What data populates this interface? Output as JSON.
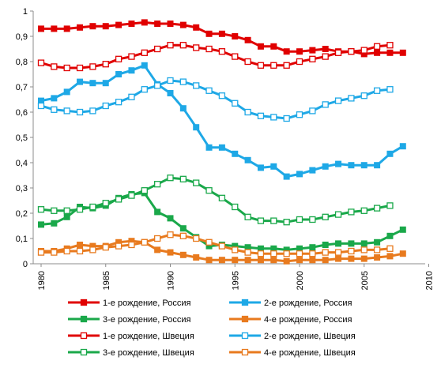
{
  "chart_data": {
    "type": "line",
    "title": "",
    "xlabel": "",
    "ylabel": "",
    "xlim": [
      1980,
      2010
    ],
    "ylim": [
      0,
      1
    ],
    "x_ticks": [
      1980,
      1985,
      1990,
      1995,
      2000,
      2005,
      2010
    ],
    "y_ticks": [
      "0",
      "0,1",
      "0,2",
      "0,3",
      "0,4",
      "0,5",
      "0,6",
      "0,7",
      "0,8",
      "0,9",
      "1"
    ],
    "grid": false,
    "legend_position": "bottom",
    "series": [
      {
        "name": "1-е рождение, Россия",
        "color": "#e00000",
        "marker": "filled",
        "x": [
          1980,
          1981,
          1982,
          1983,
          1984,
          1985,
          1986,
          1987,
          1988,
          1989,
          1990,
          1991,
          1992,
          1993,
          1994,
          1995,
          1996,
          1997,
          1998,
          1999,
          2000,
          2001,
          2002,
          2003,
          2004,
          2005,
          2006,
          2007,
          2008
        ],
        "y": [
          0.93,
          0.93,
          0.93,
          0.935,
          0.94,
          0.94,
          0.945,
          0.95,
          0.955,
          0.95,
          0.95,
          0.945,
          0.935,
          0.91,
          0.91,
          0.9,
          0.885,
          0.86,
          0.86,
          0.84,
          0.84,
          0.845,
          0.85,
          0.84,
          0.84,
          0.83,
          0.835,
          0.835,
          0.835
        ]
      },
      {
        "name": "2-е рождение, Россия",
        "color": "#1ea8e6",
        "marker": "filled",
        "x": [
          1980,
          1981,
          1982,
          1983,
          1984,
          1985,
          1986,
          1987,
          1988,
          1989,
          1990,
          1991,
          1992,
          1993,
          1994,
          1995,
          1996,
          1997,
          1998,
          1999,
          2000,
          2001,
          2002,
          2003,
          2004,
          2005,
          2006,
          2007,
          2008
        ],
        "y": [
          0.645,
          0.655,
          0.68,
          0.72,
          0.715,
          0.715,
          0.75,
          0.765,
          0.785,
          0.71,
          0.675,
          0.615,
          0.54,
          0.46,
          0.46,
          0.435,
          0.41,
          0.38,
          0.385,
          0.345,
          0.355,
          0.37,
          0.385,
          0.395,
          0.39,
          0.39,
          0.39,
          0.435,
          0.465
        ]
      },
      {
        "name": "3-е рождение, Россия",
        "color": "#1aa84a",
        "marker": "filled",
        "x": [
          1980,
          1981,
          1982,
          1983,
          1984,
          1985,
          1986,
          1987,
          1988,
          1989,
          1990,
          1991,
          1992,
          1993,
          1994,
          1995,
          1996,
          1997,
          1998,
          1999,
          2000,
          2001,
          2002,
          2003,
          2004,
          2005,
          2006,
          2007,
          2008
        ],
        "y": [
          0.155,
          0.16,
          0.185,
          0.225,
          0.22,
          0.23,
          0.26,
          0.275,
          0.28,
          0.205,
          0.18,
          0.14,
          0.105,
          0.07,
          0.075,
          0.07,
          0.065,
          0.06,
          0.06,
          0.055,
          0.06,
          0.065,
          0.075,
          0.08,
          0.08,
          0.08,
          0.085,
          0.11,
          0.135
        ]
      },
      {
        "name": "4-е рождение, Россия",
        "color": "#e87a1e",
        "marker": "filled",
        "x": [
          1980,
          1981,
          1982,
          1983,
          1984,
          1985,
          1986,
          1987,
          1988,
          1989,
          1990,
          1991,
          1992,
          1993,
          1994,
          1995,
          1996,
          1997,
          1998,
          1999,
          2000,
          2001,
          2002,
          2003,
          2004,
          2005,
          2006,
          2007,
          2008
        ],
        "y": [
          0.05,
          0.05,
          0.06,
          0.075,
          0.07,
          0.07,
          0.085,
          0.09,
          0.085,
          0.055,
          0.045,
          0.035,
          0.025,
          0.015,
          0.015,
          0.015,
          0.015,
          0.015,
          0.015,
          0.01,
          0.015,
          0.015,
          0.015,
          0.02,
          0.02,
          0.02,
          0.025,
          0.03,
          0.04
        ]
      },
      {
        "name": "1-е рождение, Швеция",
        "color": "#e00000",
        "marker": "hollow",
        "x": [
          1980,
          1981,
          1982,
          1983,
          1984,
          1985,
          1986,
          1987,
          1988,
          1989,
          1990,
          1991,
          1992,
          1993,
          1994,
          1995,
          1996,
          1997,
          1998,
          1999,
          2000,
          2001,
          2002,
          2003,
          2004,
          2005,
          2006,
          2007
        ],
        "y": [
          0.795,
          0.78,
          0.775,
          0.775,
          0.78,
          0.79,
          0.81,
          0.82,
          0.835,
          0.85,
          0.865,
          0.865,
          0.855,
          0.85,
          0.84,
          0.82,
          0.8,
          0.785,
          0.785,
          0.785,
          0.8,
          0.81,
          0.82,
          0.835,
          0.84,
          0.845,
          0.86,
          0.865
        ]
      },
      {
        "name": "2-е рождение, Швеция",
        "color": "#1ea8e6",
        "marker": "hollow",
        "x": [
          1980,
          1981,
          1982,
          1983,
          1984,
          1985,
          1986,
          1987,
          1988,
          1989,
          1990,
          1991,
          1992,
          1993,
          1994,
          1995,
          1996,
          1997,
          1998,
          1999,
          2000,
          2001,
          2002,
          2003,
          2004,
          2005,
          2006,
          2007
        ],
        "y": [
          0.625,
          0.61,
          0.605,
          0.6,
          0.605,
          0.625,
          0.64,
          0.66,
          0.69,
          0.705,
          0.725,
          0.72,
          0.705,
          0.685,
          0.665,
          0.635,
          0.6,
          0.585,
          0.58,
          0.575,
          0.59,
          0.605,
          0.63,
          0.645,
          0.655,
          0.665,
          0.685,
          0.69
        ]
      },
      {
        "name": "3-е рождение, Швеция",
        "color": "#1aa84a",
        "marker": "hollow",
        "x": [
          1980,
          1981,
          1982,
          1983,
          1984,
          1985,
          1986,
          1987,
          1988,
          1989,
          1990,
          1991,
          1992,
          1993,
          1994,
          1995,
          1996,
          1997,
          1998,
          1999,
          2000,
          2001,
          2002,
          2003,
          2004,
          2005,
          2006,
          2007
        ],
        "y": [
          0.215,
          0.21,
          0.21,
          0.215,
          0.225,
          0.24,
          0.255,
          0.27,
          0.29,
          0.315,
          0.34,
          0.335,
          0.32,
          0.29,
          0.26,
          0.225,
          0.185,
          0.17,
          0.17,
          0.165,
          0.175,
          0.175,
          0.185,
          0.195,
          0.205,
          0.21,
          0.22,
          0.23
        ]
      },
      {
        "name": "4-е рождение, Швеция",
        "color": "#e87a1e",
        "marker": "hollow",
        "x": [
          1980,
          1981,
          1982,
          1983,
          1984,
          1985,
          1986,
          1987,
          1988,
          1989,
          1990,
          1991,
          1992,
          1993,
          1994,
          1995,
          1996,
          1997,
          1998,
          1999,
          2000,
          2001,
          2002,
          2003,
          2004,
          2005,
          2006,
          2007
        ],
        "y": [
          0.045,
          0.045,
          0.05,
          0.05,
          0.055,
          0.065,
          0.07,
          0.075,
          0.085,
          0.1,
          0.115,
          0.11,
          0.1,
          0.085,
          0.07,
          0.055,
          0.045,
          0.04,
          0.04,
          0.04,
          0.04,
          0.04,
          0.045,
          0.045,
          0.05,
          0.055,
          0.055,
          0.06
        ]
      }
    ]
  }
}
